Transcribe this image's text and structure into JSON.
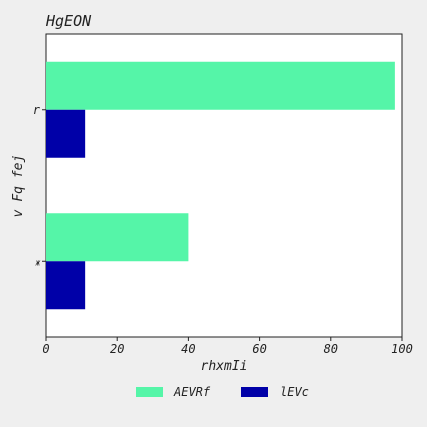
{
  "chart_data": {
    "type": "bar",
    "orientation": "horizontal",
    "title": "HgEON",
    "xlabel": "rhxmIi",
    "ylabel": "v Fq fej",
    "categories": [
      "r",
      "Ж"
    ],
    "xlim": [
      0,
      100
    ],
    "xticks": [
      0,
      20,
      40,
      60,
      80,
      100
    ],
    "grid": false,
    "legend_position": "bottom",
    "series": [
      {
        "name": "AEVRf",
        "color": "#55f5a8",
        "values": [
          98,
          40
        ]
      },
      {
        "name": "lEVc",
        "color": "#0000a8",
        "values": [
          11,
          11
        ]
      }
    ]
  }
}
